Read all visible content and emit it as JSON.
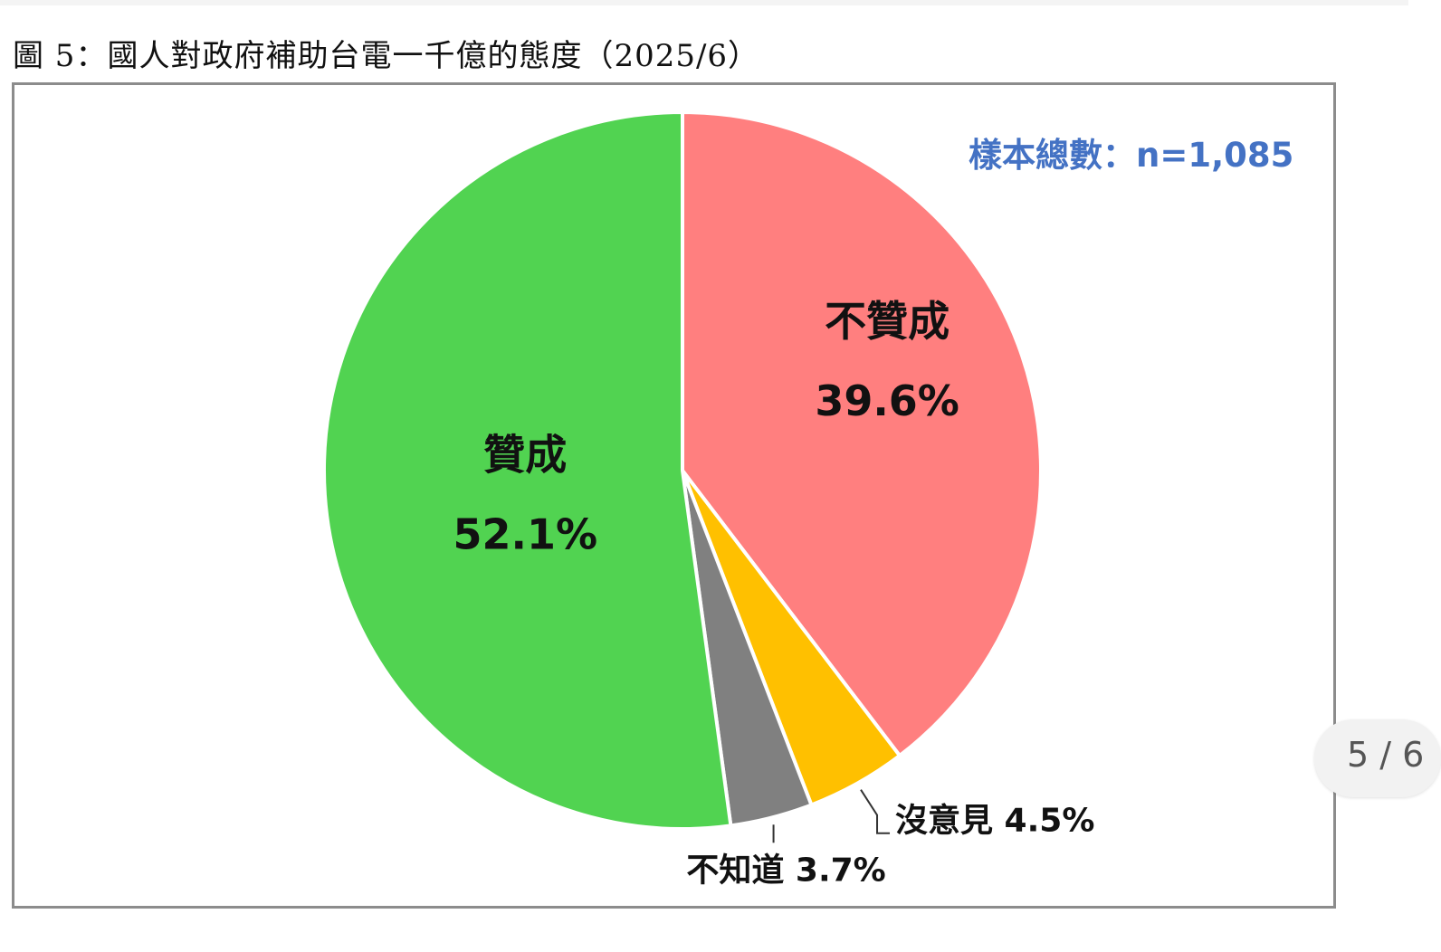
{
  "figure_caption": "圖 5：國人對政府補助台電一千億的態度（2025/6）",
  "sample_size_label": "樣本總數：n=1,085",
  "page_indicator": "5 / 6",
  "colors": {
    "agree": "#51d351",
    "disagree": "#ff7f7f",
    "no_opinion": "#ffc000",
    "dont_know": "#808080",
    "sample_size_text": "#4472c4"
  },
  "chart_data": {
    "type": "pie",
    "start_angle_deg": 0,
    "direction": "clockwise",
    "slices": [
      {
        "name": "不贊成",
        "value": 39.6,
        "label": "39.6%",
        "color": "#ff7f7f"
      },
      {
        "name": "沒意見",
        "value": 4.5,
        "label": "沒意見 4.5%",
        "color": "#ffc000"
      },
      {
        "name": "不知道",
        "value": 3.7,
        "label": "不知道 3.7%",
        "color": "#808080"
      },
      {
        "name": "贊成",
        "value": 52.1,
        "label": "52.1%",
        "color": "#51d351"
      }
    ]
  }
}
